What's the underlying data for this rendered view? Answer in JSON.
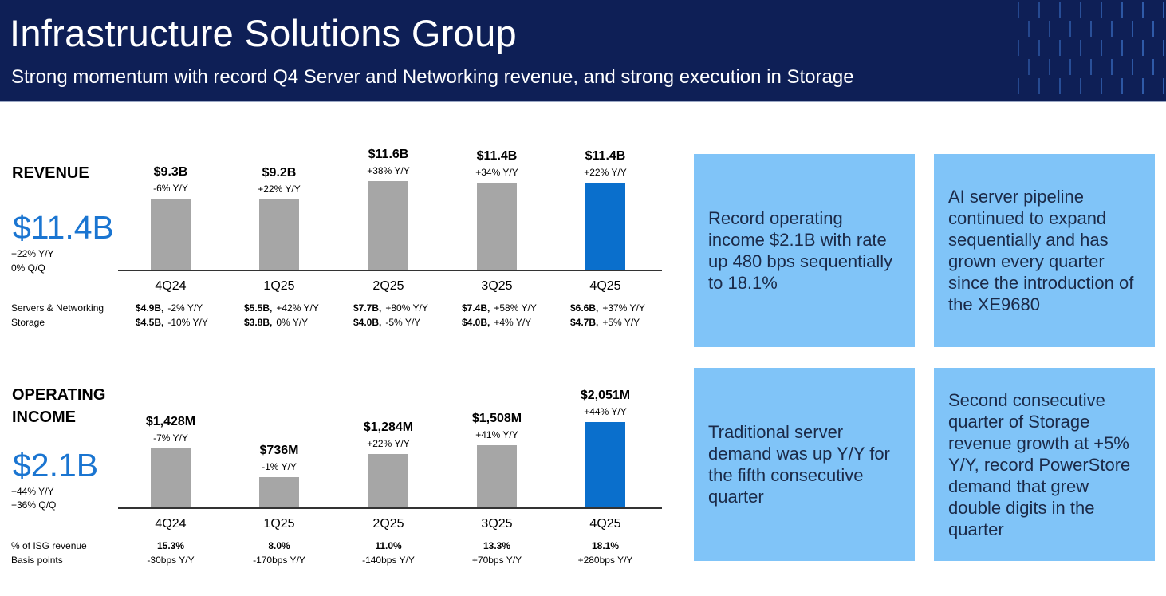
{
  "header": {
    "title": "Infrastructure Solutions Group",
    "subtitle": "Strong momentum with record Q4 Server and Networking revenue, and strong execution in Storage"
  },
  "revenue": {
    "heading": "REVENUE",
    "headline": "$11.4B",
    "yoy": "+22% Y/Y",
    "qoq": "0% Q/Q",
    "row_labels": [
      "Servers & Networking",
      "Storage"
    ],
    "rows": [
      [
        {
          "v": "$4.9B,",
          "c": "-2% Y/Y"
        },
        {
          "v": "$5.5B,",
          "c": "+42% Y/Y"
        },
        {
          "v": "$7.7B,",
          "c": "+80% Y/Y"
        },
        {
          "v": "$7.4B,",
          "c": "+58% Y/Y"
        },
        {
          "v": "$6.6B,",
          "c": "+37% Y/Y"
        }
      ],
      [
        {
          "v": "$4.5B,",
          "c": "-10% Y/Y"
        },
        {
          "v": "$3.8B,",
          "c": "0% Y/Y"
        },
        {
          "v": "$4.0B,",
          "c": "-5% Y/Y"
        },
        {
          "v": "$4.0B,",
          "c": "+4% Y/Y"
        },
        {
          "v": "$4.7B,",
          "c": "+5% Y/Y"
        }
      ]
    ]
  },
  "operating_income": {
    "heading_line1": "OPERATING",
    "heading_line2": "INCOME",
    "headline": "$2.1B",
    "yoy": "+44% Y/Y",
    "qoq": "+36% Q/Q",
    "row_labels": [
      "% of ISG revenue",
      "Basis points"
    ],
    "rows": [
      [
        "15.3%",
        "8.0%",
        "11.0%",
        "13.3%",
        "18.1%"
      ],
      [
        "-30bps Y/Y",
        "-170bps Y/Y",
        "-140bps Y/Y",
        "+70bps Y/Y",
        "+280bps Y/Y"
      ]
    ]
  },
  "chart_data": [
    {
      "type": "bar",
      "categories": [
        "4Q24",
        "1Q25",
        "2Q25",
        "3Q25",
        "4Q25"
      ],
      "values": [
        9.3,
        9.2,
        11.6,
        11.4,
        11.4
      ],
      "value_labels": [
        "$9.3B",
        "$9.2B",
        "$11.6B",
        "$11.4B",
        "$11.4B"
      ],
      "sub_labels": [
        "-6% Y/Y",
        "+22% Y/Y",
        "+38% Y/Y",
        "+34% Y/Y",
        "+22% Y/Y"
      ],
      "unit": "$B",
      "grid": false,
      "colors": {
        "default": "#a6a6a6",
        "highlight": "#0a6fcc"
      },
      "highlight_index": 4
    },
    {
      "type": "bar",
      "categories": [
        "4Q24",
        "1Q25",
        "2Q25",
        "3Q25",
        "4Q25"
      ],
      "values": [
        1428,
        736,
        1284,
        1508,
        2051
      ],
      "value_labels": [
        "$1,428M",
        "$736M",
        "$1,284M",
        "$1,508M",
        "$2,051M"
      ],
      "sub_labels": [
        "-7% Y/Y",
        "-1% Y/Y",
        "+22% Y/Y",
        "+41% Y/Y",
        "+44% Y/Y"
      ],
      "unit": "$M",
      "grid": false,
      "colors": {
        "default": "#a6a6a6",
        "highlight": "#0a6fcc"
      },
      "highlight_index": 4
    }
  ],
  "callouts": [
    "Record operating income $2.1B with rate up 480 bps sequentially to 18.1%",
    "AI server pipeline continued to expand sequentially and has grown every quarter since the introduction of the XE9680",
    "Traditional server demand was up Y/Y for the fifth consecutive quarter",
    "Second consecutive quarter of Storage revenue growth at +5% Y/Y, record PowerStore demand that grew double digits in the quarter"
  ],
  "colors": {
    "header_bg": "#0e1f56",
    "accent": "#1a75d1",
    "callout_bg": "#80c4f8"
  }
}
